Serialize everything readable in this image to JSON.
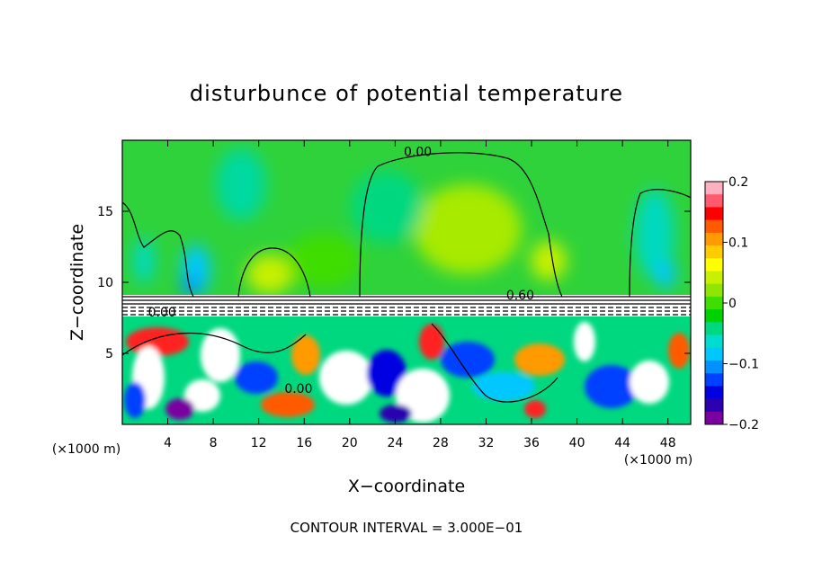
{
  "chart_data": {
    "type": "heatmap",
    "title": "disturbunce of potential temperature",
    "xlabel": "X−coordinate",
    "ylabel": "Z−coordinate",
    "x_unit_left": "(×1000 m)",
    "x_unit_right": "(×1000 m)",
    "footer": "CONTOUR INTERVAL = 3.000E−01",
    "xlim": [
      0,
      50
    ],
    "ylim": [
      0,
      20
    ],
    "x_ticks": [
      4,
      8,
      12,
      16,
      20,
      24,
      28,
      32,
      36,
      40,
      44,
      48
    ],
    "y_ticks": [
      5,
      10,
      15
    ],
    "contour_labels": [
      {
        "text": "0.00",
        "x": 26,
        "y": 18.9
      },
      {
        "text": "0.00",
        "x": 3.5,
        "y": 7.6
      },
      {
        "text": "0.00",
        "x": 15.5,
        "y": 2.2
      },
      {
        "text": "0.60",
        "x": 35,
        "y": 8.8
      }
    ],
    "colorbar": {
      "min": -0.2,
      "max": 0.2,
      "ticks": [
        0.2,
        0.1,
        0,
        -0.1,
        -0.2
      ],
      "tick_labels": [
        "0.2",
        "0.1",
        "0",
        "−0.1",
        "−0.2"
      ],
      "colors": [
        "#ffb0c0",
        "#ff5a6e",
        "#ff0000",
        "#ff5a00",
        "#ff9a00",
        "#ffcc00",
        "#ffff00",
        "#c8f000",
        "#90e600",
        "#40dd00",
        "#00d200",
        "#00d880",
        "#00dcd0",
        "#00c8ff",
        "#0090ff",
        "#0040ff",
        "#0000e0",
        "#2a00b0",
        "#7a00a0"
      ]
    },
    "field": {
      "base_color": "#2fd23a",
      "lower_layer_top": 7.7,
      "stable_band": [
        7.7,
        9.0
      ]
    }
  }
}
